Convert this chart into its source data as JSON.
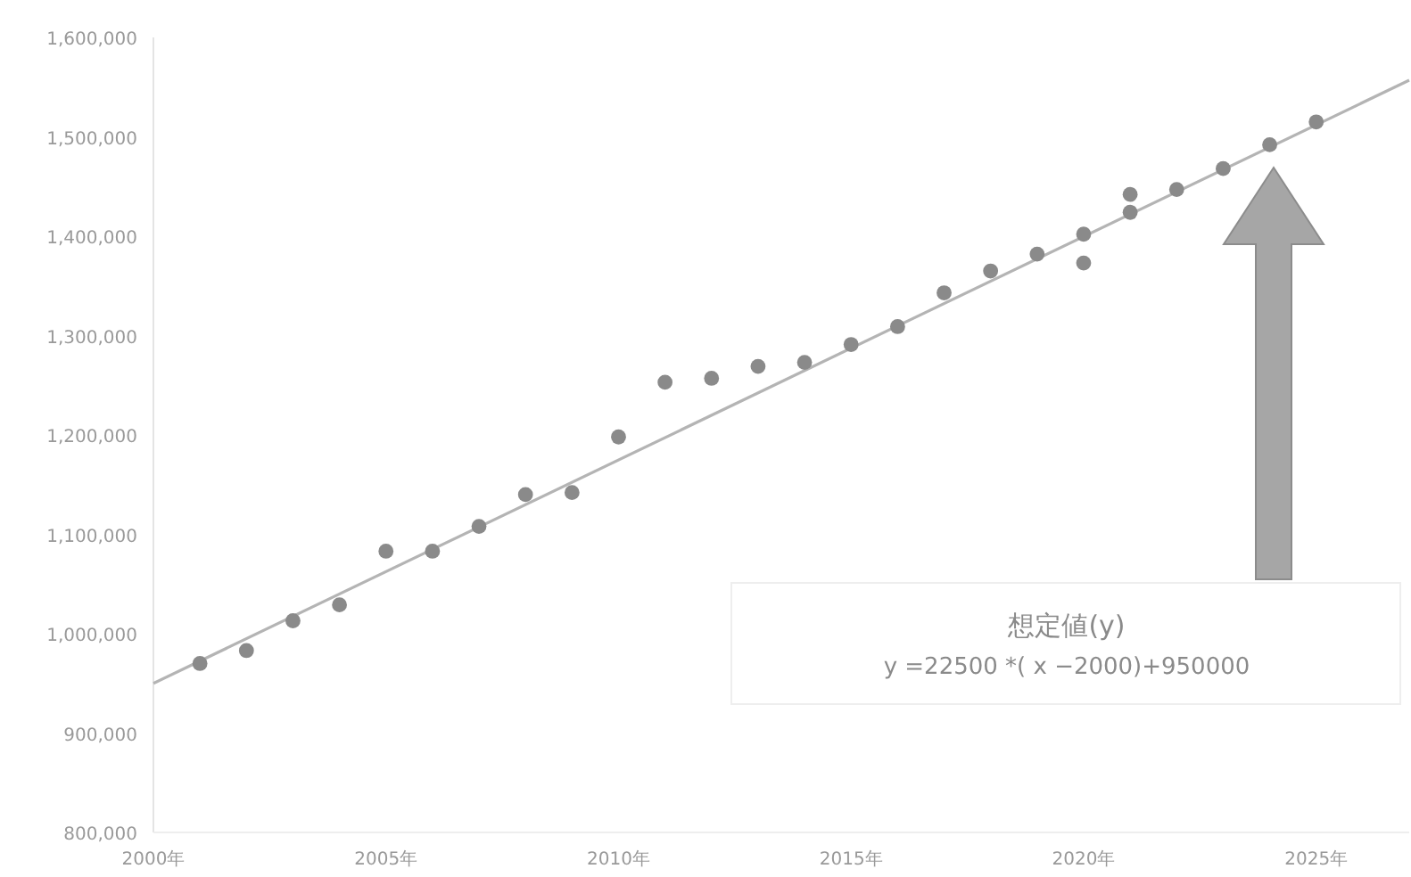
{
  "chart_data": {
    "type": "scatter",
    "marker": "circle",
    "xlim": [
      2000,
      2027
    ],
    "ylim": [
      800000,
      1600000
    ],
    "xticks": [
      {
        "value": 2000,
        "label": "2000年"
      },
      {
        "value": 2005,
        "label": "2005年"
      },
      {
        "value": 2010,
        "label": "2010年"
      },
      {
        "value": 2015,
        "label": "2015年"
      },
      {
        "value": 2020,
        "label": "2020年"
      },
      {
        "value": 2025,
        "label": "2025年"
      }
    ],
    "yticks": [
      {
        "value": 800000,
        "label": "800,000"
      },
      {
        "value": 900000,
        "label": "900,000"
      },
      {
        "value": 1000000,
        "label": "1,000,000"
      },
      {
        "value": 1100000,
        "label": "1,100,000"
      },
      {
        "value": 1200000,
        "label": "1,200,000"
      },
      {
        "value": 1300000,
        "label": "1,300,000"
      },
      {
        "value": 1400000,
        "label": "1,400,000"
      },
      {
        "value": 1500000,
        "label": "1,500,000"
      },
      {
        "value": 1600000,
        "label": "1,600,000"
      }
    ],
    "series": [
      {
        "type": "line",
        "marker": "none",
        "color": "#b4b4b4",
        "x": [
          2000,
          2027
        ],
        "values": [
          950000,
          1557000
        ]
      },
      {
        "color": "#8a8a8a",
        "x": [
          2001,
          2002,
          2003,
          2004,
          2005,
          2006,
          2007,
          2008,
          2009,
          2010,
          2011,
          2012,
          2013,
          2014,
          2015,
          2016,
          2017,
          2018,
          2019,
          2020,
          2020,
          2021,
          2021,
          2022,
          2023,
          2024,
          2025
        ],
        "values": [
          970000,
          983000,
          1013000,
          1029000,
          1083000,
          1083000,
          1108000,
          1140000,
          1142000,
          1198000,
          1253000,
          1257000,
          1269000,
          1273000,
          1291000,
          1309000,
          1343000,
          1365000,
          1382000,
          1402000,
          1373000,
          1442000,
          1424000,
          1447000,
          1468000,
          1492000,
          1515000
        ]
      }
    ],
    "annotations": [
      "想定値(y)",
      "y =22500 *( x −2000)+950000"
    ]
  }
}
